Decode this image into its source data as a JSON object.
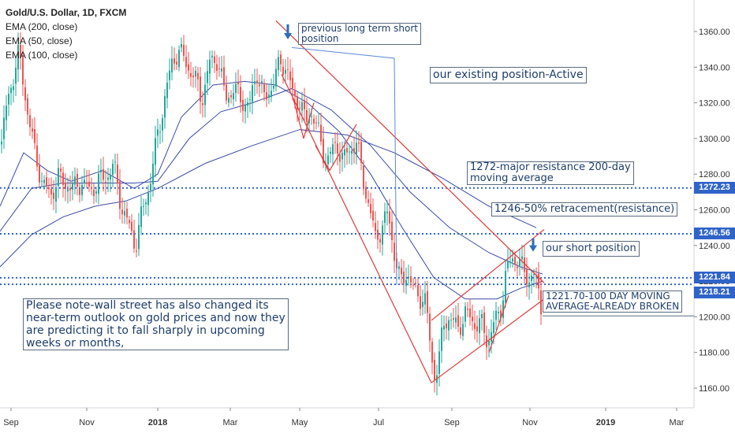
{
  "chart_data": {
    "type": "candlestick",
    "title": "Gold/U.S. Dollar, 1D, FXCM",
    "legend": [
      {
        "name": "EMA (200, close)",
        "color": "#2a3b8f"
      },
      {
        "name": "EMA (50, close)",
        "color": "#3a4aa8"
      },
      {
        "name": "EMA (100, close)",
        "color": "#3a4aa8"
      }
    ],
    "ylim": [
      1153,
      1372
    ],
    "y_ticks": [
      1160,
      1180,
      1200,
      1220,
      1240,
      1260,
      1280,
      1300,
      1320,
      1340,
      1360
    ],
    "x_ticks": [
      "Sep",
      "Nov",
      "2018",
      "Mar",
      "May",
      "Jul",
      "Sep",
      "Nov",
      "2019",
      "Mar"
    ],
    "horizontal_levels": [
      {
        "label": "1272.23",
        "value": 1272.23
      },
      {
        "label": "1246.56",
        "value": 1246.56
      },
      {
        "label": "1221.84",
        "value": 1221.84
      },
      {
        "label": "1218.21",
        "value": 1218.21
      }
    ],
    "close_path": [
      [
        0,
        1290
      ],
      [
        6,
        1312
      ],
      [
        14,
        1330
      ],
      [
        24,
        1348
      ],
      [
        34,
        1318
      ],
      [
        44,
        1292
      ],
      [
        54,
        1275
      ],
      [
        64,
        1268
      ],
      [
        74,
        1278
      ],
      [
        84,
        1274
      ],
      [
        94,
        1272
      ],
      [
        104,
        1276
      ],
      [
        114,
        1270
      ],
      [
        124,
        1276
      ],
      [
        134,
        1278
      ],
      [
        144,
        1285
      ],
      [
        154,
        1262
      ],
      [
        164,
        1250
      ],
      [
        172,
        1240
      ],
      [
        180,
        1258
      ],
      [
        190,
        1275
      ],
      [
        200,
        1302
      ],
      [
        210,
        1325
      ],
      [
        218,
        1342
      ],
      [
        226,
        1350
      ],
      [
        236,
        1342
      ],
      [
        246,
        1335
      ],
      [
        256,
        1322
      ],
      [
        266,
        1342
      ],
      [
        276,
        1345
      ],
      [
        286,
        1322
      ],
      [
        296,
        1328
      ],
      [
        306,
        1322
      ],
      [
        316,
        1318
      ],
      [
        326,
        1338
      ],
      [
        336,
        1320
      ],
      [
        346,
        1332
      ],
      [
        356,
        1342
      ],
      [
        364,
        1340
      ],
      [
        372,
        1322
      ],
      [
        380,
        1322
      ],
      [
        388,
        1308
      ],
      [
        396,
        1316
      ],
      [
        404,
        1302
      ],
      [
        412,
        1288
      ],
      [
        420,
        1292
      ],
      [
        428,
        1296
      ],
      [
        436,
        1288
      ],
      [
        444,
        1294
      ],
      [
        452,
        1298
      ],
      [
        460,
        1278
      ],
      [
        468,
        1262
      ],
      [
        476,
        1244
      ],
      [
        484,
        1250
      ],
      [
        492,
        1258
      ],
      [
        500,
        1236
      ],
      [
        508,
        1218
      ],
      [
        516,
        1226
      ],
      [
        524,
        1215
      ],
      [
        532,
        1212
      ],
      [
        540,
        1208
      ],
      [
        546,
        1182
      ],
      [
        550,
        1168
      ],
      [
        556,
        1172
      ],
      [
        562,
        1196
      ],
      [
        570,
        1200
      ],
      [
        580,
        1193
      ],
      [
        590,
        1202
      ],
      [
        600,
        1197
      ],
      [
        610,
        1196
      ],
      [
        618,
        1186
      ],
      [
        626,
        1196
      ],
      [
        634,
        1202
      ],
      [
        642,
        1226
      ],
      [
        650,
        1232
      ],
      [
        658,
        1233
      ],
      [
        664,
        1224
      ],
      [
        670,
        1221
      ],
      [
        676,
        1226
      ],
      [
        682,
        1214
      ],
      [
        688,
        1202
      ]
    ],
    "ema200_path": [
      [
        0,
        1228
      ],
      [
        40,
        1246
      ],
      [
        80,
        1256
      ],
      [
        120,
        1262
      ],
      [
        160,
        1265
      ],
      [
        200,
        1272
      ],
      [
        260,
        1286
      ],
      [
        320,
        1296
      ],
      [
        380,
        1305
      ],
      [
        440,
        1302
      ],
      [
        500,
        1292
      ],
      [
        560,
        1278
      ],
      [
        620,
        1262
      ],
      [
        680,
        1250
      ]
    ],
    "ema50_path": [
      [
        0,
        1262
      ],
      [
        30,
        1292
      ],
      [
        60,
        1282
      ],
      [
        90,
        1276
      ],
      [
        130,
        1282
      ],
      [
        170,
        1272
      ],
      [
        200,
        1280
      ],
      [
        230,
        1312
      ],
      [
        270,
        1330
      ],
      [
        310,
        1332
      ],
      [
        350,
        1330
      ],
      [
        390,
        1320
      ],
      [
        430,
        1304
      ],
      [
        470,
        1280
      ],
      [
        510,
        1250
      ],
      [
        550,
        1222
      ],
      [
        590,
        1210
      ],
      [
        630,
        1210
      ],
      [
        660,
        1216
      ],
      [
        688,
        1220
      ]
    ],
    "ema100_path": [
      [
        0,
        1248
      ],
      [
        40,
        1272
      ],
      [
        80,
        1275
      ],
      [
        120,
        1275
      ],
      [
        170,
        1275
      ],
      [
        200,
        1276
      ],
      [
        240,
        1300
      ],
      [
        280,
        1315
      ],
      [
        320,
        1320
      ],
      [
        370,
        1328
      ],
      [
        420,
        1316
      ],
      [
        470,
        1296
      ],
      [
        520,
        1270
      ],
      [
        570,
        1250
      ],
      [
        620,
        1236
      ],
      [
        660,
        1228
      ],
      [
        688,
        1224
      ]
    ]
  },
  "annotations": {
    "prev_short": "previous long term short\nposition",
    "existing": "our existing position-Active",
    "resist_1272": "1272-major resistance 200-day\nmoving average",
    "retrace_1246": "1246-50% retracement(resistance)",
    "our_short": "our short position",
    "ma_broken": "1221.70-100 DAY MOVING\nAVERAGE-ALREADY BROKEN",
    "note": "Please note-wall street has also changed its\nnear-term outlook on gold prices and now they\nare predicting it to fall sharply in upcoming\nweeks or months,"
  },
  "colors": {
    "up": "#26a69a",
    "down": "#ef5350",
    "channel": "#e03a3a",
    "level": "#2f63c8",
    "ema": "#3a4aa8",
    "arrow": "#2a6fbe"
  }
}
